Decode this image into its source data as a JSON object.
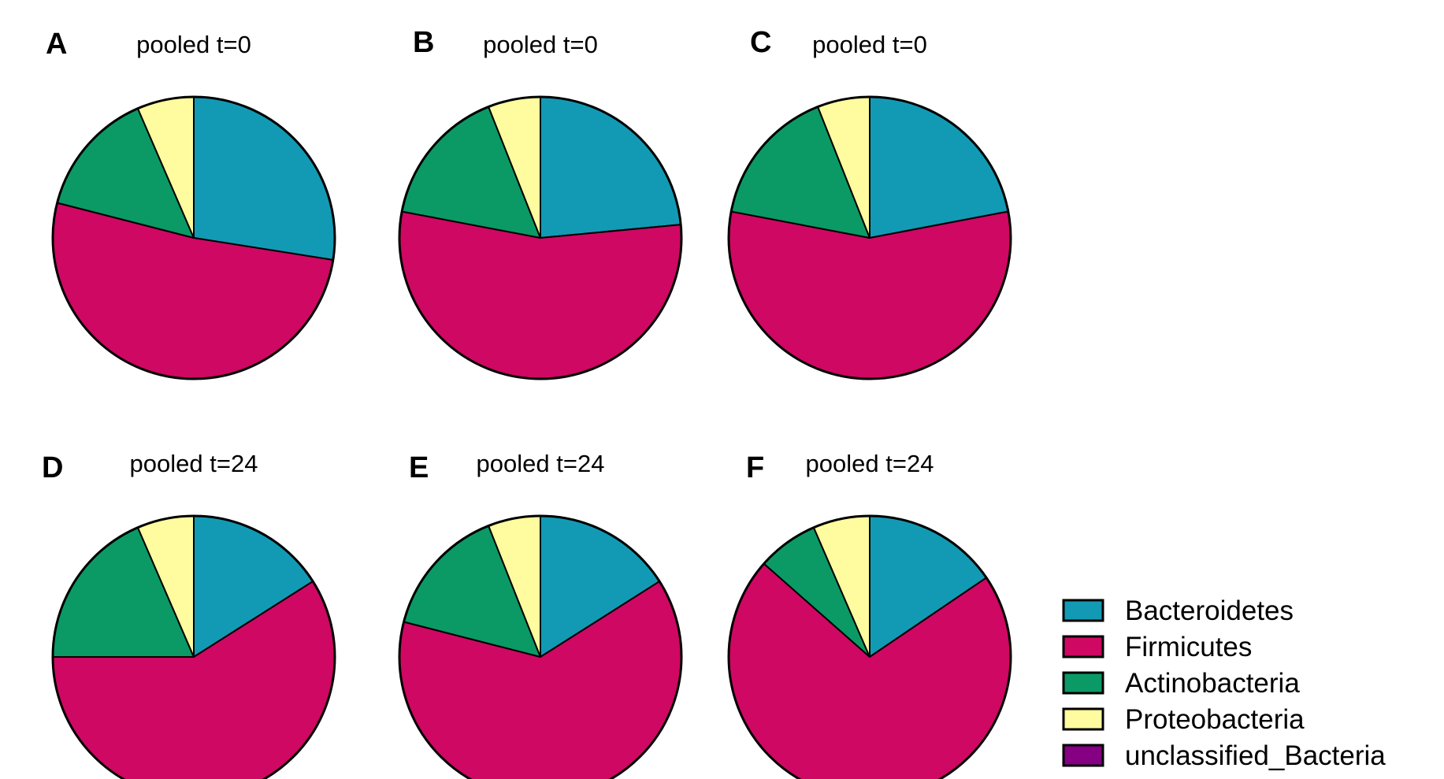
{
  "chart_data": [
    {
      "type": "pie",
      "panel": "A",
      "title": "pooled t=0",
      "categories": [
        "Bacteroidetes",
        "Firmicutes",
        "Actinobacteria",
        "Proteobacteria",
        "unclassified_Bacteria"
      ],
      "values": [
        27.5,
        51.5,
        14.5,
        6.5,
        0
      ]
    },
    {
      "type": "pie",
      "panel": "B",
      "title": "pooled t=0",
      "categories": [
        "Bacteroidetes",
        "Firmicutes",
        "Actinobacteria",
        "Proteobacteria",
        "unclassified_Bacteria"
      ],
      "values": [
        23.5,
        54.5,
        16,
        6,
        0
      ]
    },
    {
      "type": "pie",
      "panel": "C",
      "title": "pooled t=0",
      "categories": [
        "Bacteroidetes",
        "Firmicutes",
        "Actinobacteria",
        "Proteobacteria",
        "unclassified_Bacteria"
      ],
      "values": [
        22,
        56,
        16,
        6,
        0
      ]
    },
    {
      "type": "pie",
      "panel": "D",
      "title": "pooled t=24",
      "categories": [
        "Bacteroidetes",
        "Firmicutes",
        "Actinobacteria",
        "Proteobacteria",
        "unclassified_Bacteria"
      ],
      "values": [
        16,
        59,
        18.5,
        6.5,
        0
      ]
    },
    {
      "type": "pie",
      "panel": "E",
      "title": "pooled t=24",
      "categories": [
        "Bacteroidetes",
        "Firmicutes",
        "Actinobacteria",
        "Proteobacteria",
        "unclassified_Bacteria"
      ],
      "values": [
        16,
        63,
        15,
        6,
        0
      ]
    },
    {
      "type": "pie",
      "panel": "F",
      "title": "pooled t=24",
      "categories": [
        "Bacteroidetes",
        "Firmicutes",
        "Actinobacteria",
        "Proteobacteria",
        "unclassified_Bacteria"
      ],
      "values": [
        15.5,
        71,
        7,
        6.5,
        0
      ]
    }
  ],
  "legend": {
    "items": [
      {
        "label": "Bacteroidetes",
        "color": "#129AB4"
      },
      {
        "label": "Firmicutes",
        "color": "#CE0863"
      },
      {
        "label": "Actinobacteria",
        "color": "#0B9A65"
      },
      {
        "label": "Proteobacteria",
        "color": "#FEFC9E"
      },
      {
        "label": "unclassified_Bacteria",
        "color": "#850082"
      }
    ]
  }
}
